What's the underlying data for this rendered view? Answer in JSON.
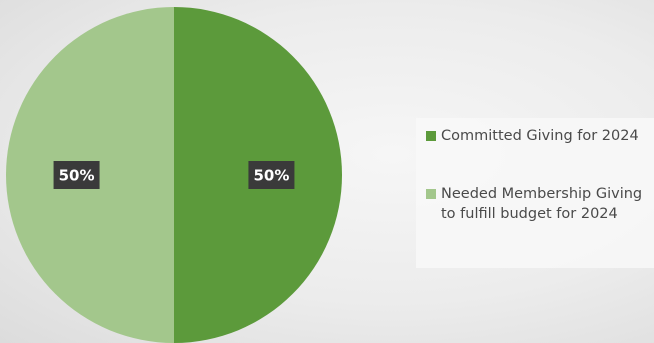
{
  "chart_data": {
    "type": "pie",
    "title": "",
    "slices": [
      {
        "label": "Committed Giving for 2024",
        "value": 50,
        "display": "50%",
        "color": "#5c9a3b"
      },
      {
        "label": "Needed Membership Giving to fulfill budget for 2024",
        "value": 50,
        "display": "50%",
        "color": "#a3c78c"
      }
    ],
    "legend_position": "right",
    "label_box_color": "#3a3a3a",
    "label_text_color": "#ffffff"
  }
}
